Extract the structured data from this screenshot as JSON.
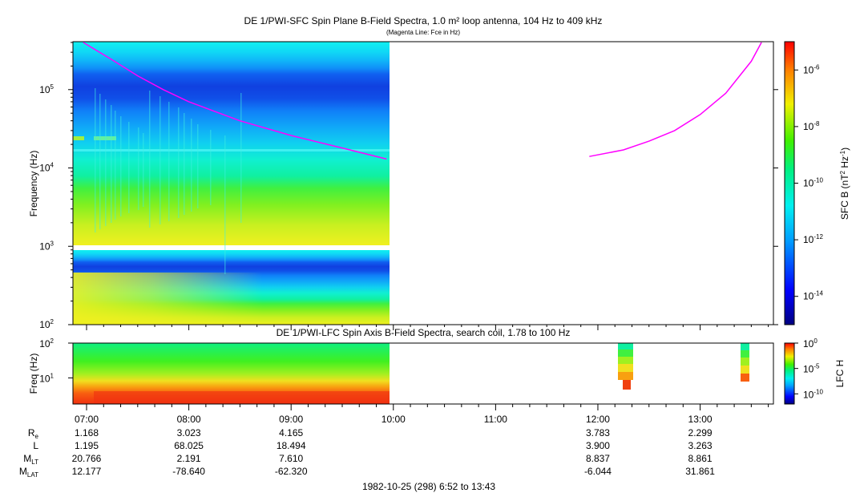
{
  "top_panel": {
    "title": "DE 1/PWI-SFC  Spin Plane B-Field Spectra, 1.0 m² loop antenna, 104 Hz to 409 kHz",
    "subtitle": "(Magenta Line: Fce in Hz)",
    "ylabel": "Frequency (Hz)",
    "yticks": [
      "10",
      "10",
      "10",
      "10"
    ],
    "ytick_exps": [
      "2",
      "3",
      "4",
      "5"
    ],
    "colorbar_label": "SFC B (nT",
    "colorbar_label_sup1": "2",
    "colorbar_label_mid": " Hz",
    "colorbar_label_sup2": "-1",
    "colorbar_label_end": ")",
    "colorbar_ticks": [
      "10",
      "10",
      "10",
      "10",
      "10"
    ],
    "colorbar_tick_exps": [
      "-6",
      "-8",
      "-10",
      "-12",
      "-14"
    ]
  },
  "bottom_panel": {
    "title": "DE 1/PWI-LFC  Spin Axis B-Field Spectra, search coil, 1.78 to 100 Hz",
    "ylabel": "Freq (Hz)",
    "yticks": [
      "10",
      "10"
    ],
    "ytick_exps": [
      "2",
      "1"
    ],
    "colorbar_label": "LFC H",
    "colorbar_ticks": [
      "10",
      "10",
      "10"
    ],
    "colorbar_tick_exps": [
      "0",
      "-5",
      "-10"
    ]
  },
  "x_axis": {
    "ticks": [
      "07:00",
      "08:00",
      "09:00",
      "10:00",
      "11:00",
      "12:00",
      "13:00"
    ],
    "date_range": "1982-10-25 (298) 6:52 to 13:43"
  },
  "ephemeris": {
    "rows": [
      {
        "label": "R",
        "sub": "e",
        "values": [
          "1.168",
          "3.023",
          "4.165",
          "",
          "",
          "3.783",
          "2.299"
        ]
      },
      {
        "label": "L",
        "sub": "",
        "values": [
          "1.195",
          "68.025",
          "18.494",
          "",
          "",
          "3.900",
          "3.263"
        ]
      },
      {
        "label": "M",
        "sub": "LT",
        "values": [
          "20.766",
          "2.191",
          "7.610",
          "",
          "",
          "8.837",
          "8.861"
        ]
      },
      {
        "label": "M",
        "sub": "LAT",
        "values": [
          "12.177",
          "-78.640",
          "-62.320",
          "",
          "",
          "-6.044",
          "31.861"
        ]
      }
    ]
  },
  "chart_data": [
    {
      "type": "heatmap",
      "title": "DE 1/PWI-SFC  Spin Plane B-Field Spectra, 1.0 m² loop antenna, 104 Hz to 409 kHz",
      "xlabel": "",
      "ylabel": "Frequency (Hz)",
      "xlim": [
        "06:52",
        "13:43"
      ],
      "ylim": [
        100,
        409000
      ],
      "yscale": "log",
      "colorscale_range": [
        1e-15,
        1e-05
      ],
      "colorscale": "rainbow",
      "data_coverage": [
        "06:52",
        "09:56"
      ],
      "series": [
        {
          "name": "Fce",
          "color": "#ff00ff",
          "x": [
            "06:58",
            "07:15",
            "07:30",
            "07:45",
            "08:00",
            "08:30",
            "09:00",
            "09:30",
            "09:56"
          ],
          "y": [
            400000,
            240000,
            150000,
            100000,
            70000,
            40000,
            26000,
            18000,
            13000
          ]
        },
        {
          "name": "Fce",
          "color": "#ff00ff",
          "x": [
            "11:55",
            "12:15",
            "12:30",
            "12:45",
            "13:00",
            "13:15",
            "13:30",
            "13:36"
          ],
          "y": [
            14000,
            17000,
            22000,
            30000,
            48000,
            90000,
            230000,
            400000
          ]
        }
      ]
    },
    {
      "type": "heatmap",
      "title": "DE 1/PWI-LFC  Spin Axis B-Field Spectra, search coil, 1.78 to 100 Hz",
      "ylabel": "Freq (Hz)",
      "xlim": [
        "06:52",
        "13:43"
      ],
      "ylim": [
        1.78,
        100
      ],
      "yscale": "log",
      "colorscale_range": [
        1e-12,
        1
      ],
      "data_coverage": [
        "06:52",
        "09:56"
      ]
    }
  ],
  "colors": {
    "fce_line": "#ff00ff"
  }
}
